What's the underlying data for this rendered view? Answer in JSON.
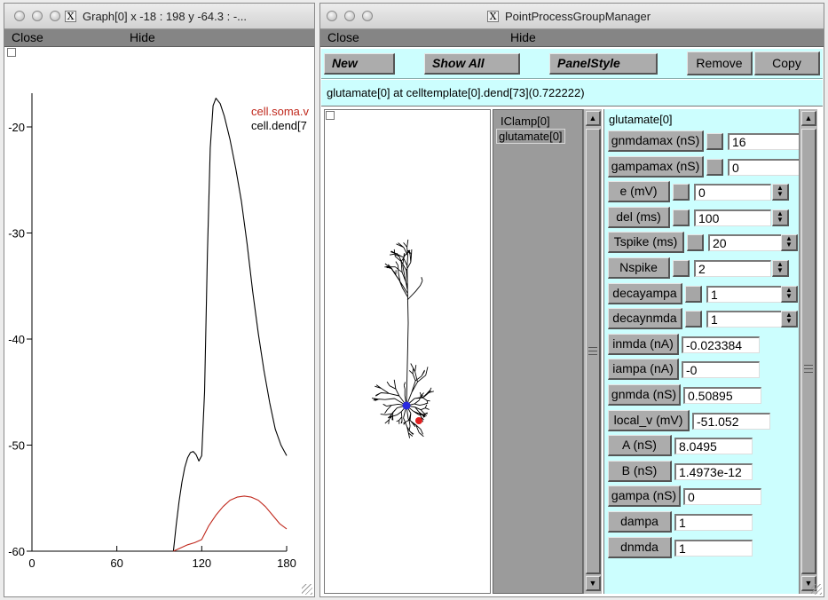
{
  "graph_window": {
    "title": "Graph[0]  x -18 : 198  y -64.3 : -...",
    "menu": {
      "close": "Close",
      "hide": "Hide"
    },
    "legend": [
      {
        "label": "cell.soma.v",
        "color": "#c0281c"
      },
      {
        "label": "cell.dend[7",
        "color": "#000000"
      }
    ]
  },
  "chart_data": {
    "type": "line",
    "title": "",
    "xlabel": "",
    "ylabel": "",
    "xlim": [
      0,
      180
    ],
    "ylim": [
      -60,
      -15
    ],
    "x_ticks": [
      0,
      60,
      120,
      180
    ],
    "y_ticks": [
      -20,
      -30,
      -40,
      -50,
      -60
    ],
    "grid": false,
    "legend_position": "top-right",
    "series": [
      {
        "name": "cell.soma.v",
        "color": "#c0281c",
        "x": [
          100,
          105,
          110,
          115,
          120,
          125,
          130,
          135,
          140,
          145,
          150,
          155,
          160,
          165,
          170,
          175,
          180
        ],
        "y": [
          -60,
          -59.7,
          -59.4,
          -59.2,
          -58.9,
          -57.6,
          -56.6,
          -55.8,
          -55.2,
          -54.9,
          -54.8,
          -54.9,
          -55.2,
          -55.8,
          -56.6,
          -57.4,
          -57.9
        ]
      },
      {
        "name": "cell.dend[7",
        "color": "#000000",
        "x": [
          100,
          102,
          104,
          106,
          108,
          110,
          112,
          114,
          116,
          118,
          120,
          122,
          124,
          126,
          128,
          130,
          133,
          136,
          140,
          144,
          148,
          152,
          156,
          160,
          164,
          168,
          172,
          176,
          180
        ],
        "y": [
          -60,
          -57.5,
          -55.3,
          -53.5,
          -52.1,
          -51.2,
          -50.7,
          -50.6,
          -50.9,
          -51.5,
          -51.0,
          -45.0,
          -32.0,
          -22.0,
          -18.0,
          -17.3,
          -17.8,
          -19.0,
          -21.2,
          -23.9,
          -27.0,
          -31.0,
          -35.5,
          -39.5,
          -43.0,
          -46.0,
          -48.5,
          -50.0,
          -51.0
        ]
      }
    ]
  },
  "ppgm_window": {
    "title": "PointProcessGroupManager",
    "menu": {
      "close": "Close",
      "hide": "Hide"
    },
    "toolbar": {
      "new": "New",
      "show_all": "Show All",
      "panel_style": "PanelStyle",
      "remove": "Remove",
      "copy": "Copy"
    },
    "location": "glutamate[0] at celltemplate[0].dend[73](0.722222)",
    "process_list": [
      "IClamp[0]",
      "glutamate[0]"
    ],
    "selected_process": "glutamate[0]",
    "panel_title": "glutamate[0]",
    "params": [
      {
        "label": "gnmdamax (nS)",
        "value": "16",
        "check": true,
        "spin": false
      },
      {
        "label": "gampamax (nS)",
        "value": "0",
        "check": true,
        "spin": false
      },
      {
        "label": "e (mV)",
        "value": "0",
        "check": true,
        "spin": true
      },
      {
        "label": "del (ms)",
        "value": "100",
        "check": true,
        "spin": true
      },
      {
        "label": "Tspike (ms)",
        "value": "20",
        "check": true,
        "spin": true
      },
      {
        "label": "Nspike",
        "value": "2",
        "check": true,
        "spin": true
      },
      {
        "label": "decayampa",
        "value": "1",
        "check": true,
        "spin": true
      },
      {
        "label": "decaynmda",
        "value": "1",
        "check": true,
        "spin": true
      },
      {
        "label": "inmda (nA)",
        "value": "-0.023384",
        "check": false,
        "spin": false
      },
      {
        "label": "iampa (nA)",
        "value": "-0",
        "check": false,
        "spin": false
      },
      {
        "label": "gnmda (nS)",
        "value": "0.50895",
        "check": false,
        "spin": false
      },
      {
        "label": "local_v (mV)",
        "value": "-51.052",
        "check": false,
        "spin": false
      },
      {
        "label": "A (nS)",
        "value": "8.0495",
        "check": false,
        "spin": false
      },
      {
        "label": "B (nS)",
        "value": "1.4973e-12",
        "check": false,
        "spin": false
      },
      {
        "label": "gampa (nS)",
        "value": "0",
        "check": false,
        "spin": false
      },
      {
        "label": "dampa",
        "value": "1",
        "check": false,
        "spin": false
      },
      {
        "label": "dnmda",
        "value": "1",
        "check": false,
        "spin": false
      }
    ],
    "colors": {
      "panel_bg": "#ccfefe",
      "list_bg": "#9b9b9b",
      "soma_marker": "#2a2ae0",
      "synapse_marker": "#e02020"
    }
  }
}
